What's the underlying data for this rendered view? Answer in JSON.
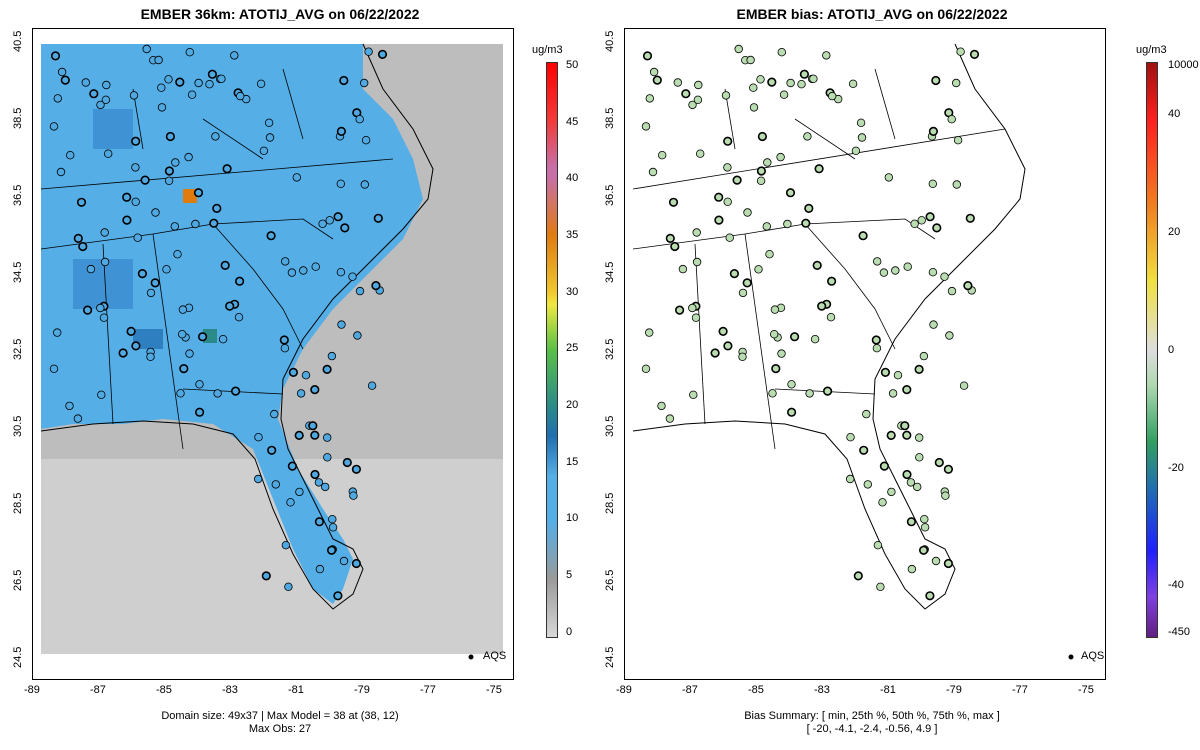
{
  "left_panel": {
    "title": "EMBER 36km: ATOTIJ_AVG on 06/22/2022",
    "unit": "ug/m3",
    "colorbar_labels": [
      "50",
      "45",
      "40",
      "35",
      "30",
      "25",
      "20",
      "15",
      "10",
      "5",
      "0"
    ],
    "footer_line1": "Domain size: 49x37 | Max Model = 38 at (38, 12)",
    "footer_line2": "Max Obs: 27",
    "legend": "AQS"
  },
  "right_panel": {
    "title": "EMBER bias: ATOTIJ_AVG on 06/22/2022",
    "unit": "ug/m3",
    "colorbar_labels": [
      "10000",
      "40",
      "20",
      "0",
      "-20",
      "-40",
      "-450"
    ],
    "footer_line1": "Bias Summary: [ min, 25th %, 50th %, 75th %, max ]",
    "footer_line2": "[ -20,   -4.1,   -2.4,   -0.56,   4.9 ]",
    "legend": "AQS"
  },
  "axes": {
    "x_ticks": [
      "-89",
      "-87",
      "-85",
      "-83",
      "-81",
      "-79",
      "-77",
      "-75"
    ],
    "y_ticks": [
      "40.5",
      "38.5",
      "36.5",
      "34.5",
      "32.5",
      "30.5",
      "28.5",
      "26.5",
      "24.5"
    ]
  },
  "colors": {
    "land_model": "#55aee6",
    "ocean_model": "#a9a9a9",
    "site_fill": "#4fa8e0",
    "bias_fill": "#b9ddb0"
  }
}
